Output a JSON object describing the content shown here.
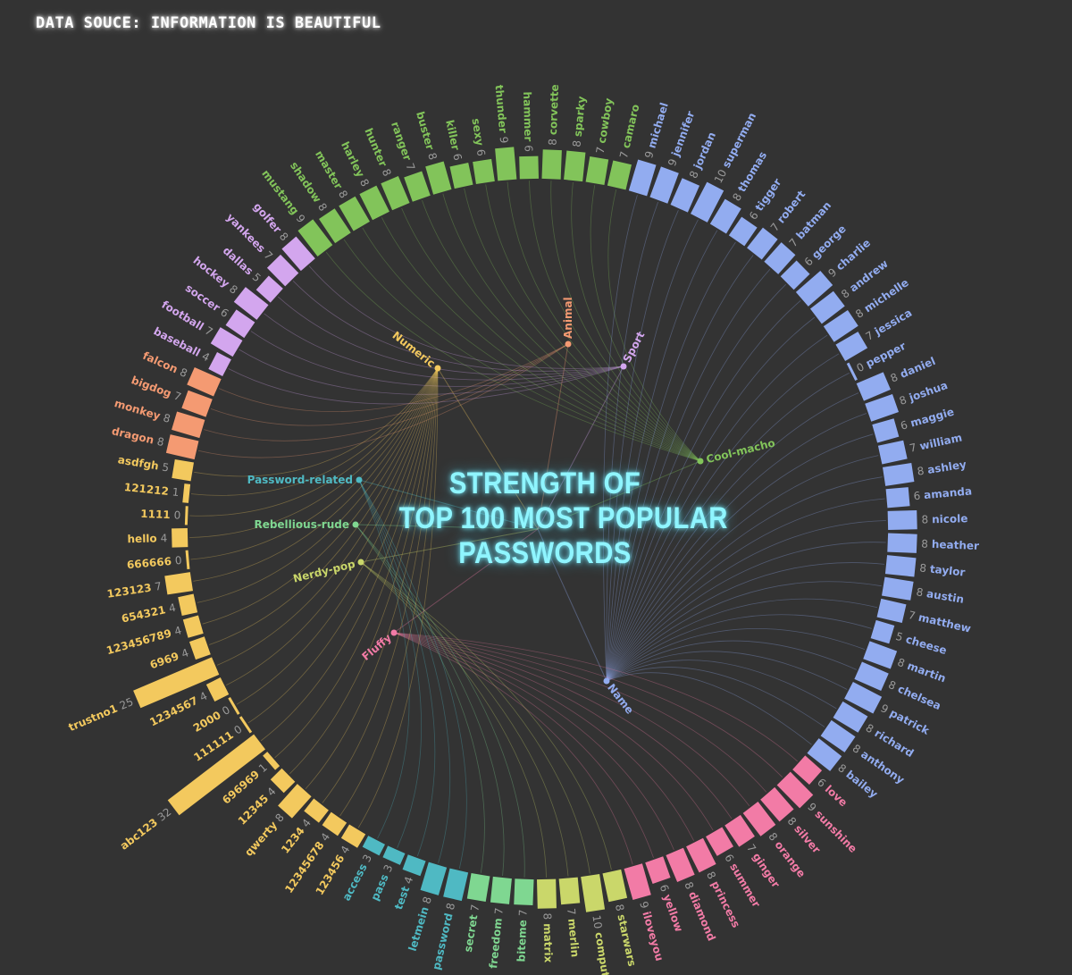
{
  "source_note": "DATA SOUCE: INFORMATION IS BEAUTIFUL",
  "chart_data": {
    "type": "radial-bar",
    "title_lines": [
      "STRENGTH OF",
      "TOP 100 MOST POPULAR",
      "PASSWORDS"
    ],
    "categories": [
      {
        "name": "Numeric",
        "color": "#f3c95e"
      },
      {
        "name": "Animal",
        "color": "#f49a72"
      },
      {
        "name": "Sport",
        "color": "#d3a6ee"
      },
      {
        "name": "Cool-macho",
        "color": "#82c45a"
      },
      {
        "name": "Name",
        "color": "#92acf0"
      },
      {
        "name": "Fluffy",
        "color": "#f27ba6"
      },
      {
        "name": "Nerdy-pop",
        "color": "#cad76a"
      },
      {
        "name": "Rebellious-rude",
        "color": "#7fd791"
      },
      {
        "name": "Password-related",
        "color": "#4fb9c3"
      }
    ],
    "passwords": [
      {
        "name": "asdfgh",
        "value": 5,
        "category": "Numeric"
      },
      {
        "name": "dragon",
        "value": 8,
        "category": "Animal"
      },
      {
        "name": "monkey",
        "value": 8,
        "category": "Animal"
      },
      {
        "name": "bigdog",
        "value": 7,
        "category": "Animal"
      },
      {
        "name": "falcon",
        "value": 8,
        "category": "Animal"
      },
      {
        "name": "baseball",
        "value": 4,
        "category": "Sport"
      },
      {
        "name": "football",
        "value": 7,
        "category": "Sport"
      },
      {
        "name": "soccer",
        "value": 6,
        "category": "Sport"
      },
      {
        "name": "hockey",
        "value": 8,
        "category": "Sport"
      },
      {
        "name": "dallas",
        "value": 5,
        "category": "Sport"
      },
      {
        "name": "yankees",
        "value": 7,
        "category": "Sport"
      },
      {
        "name": "golfer",
        "value": 8,
        "category": "Sport"
      },
      {
        "name": "mustang",
        "value": 9,
        "category": "Cool-macho"
      },
      {
        "name": "shadow",
        "value": 8,
        "category": "Cool-macho"
      },
      {
        "name": "master",
        "value": 8,
        "category": "Cool-macho"
      },
      {
        "name": "harley",
        "value": 8,
        "category": "Cool-macho"
      },
      {
        "name": "hunter",
        "value": 8,
        "category": "Cool-macho"
      },
      {
        "name": "ranger",
        "value": 7,
        "category": "Cool-macho"
      },
      {
        "name": "buster",
        "value": 8,
        "category": "Cool-macho"
      },
      {
        "name": "killer",
        "value": 6,
        "category": "Cool-macho"
      },
      {
        "name": "sexy",
        "value": 6,
        "category": "Cool-macho"
      },
      {
        "name": "thunder",
        "value": 9,
        "category": "Cool-macho"
      },
      {
        "name": "hammer",
        "value": 6,
        "category": "Cool-macho"
      },
      {
        "name": "corvette",
        "value": 8,
        "category": "Cool-macho"
      },
      {
        "name": "sparky",
        "value": 8,
        "category": "Cool-macho"
      },
      {
        "name": "cowboy",
        "value": 7,
        "category": "Cool-macho"
      },
      {
        "name": "camaro",
        "value": 7,
        "category": "Cool-macho"
      },
      {
        "name": "michael",
        "value": 9,
        "category": "Name"
      },
      {
        "name": "jennifer",
        "value": 9,
        "category": "Name"
      },
      {
        "name": "jordan",
        "value": 8,
        "category": "Name"
      },
      {
        "name": "superman",
        "value": 10,
        "category": "Name"
      },
      {
        "name": "thomas",
        "value": 8,
        "category": "Name"
      },
      {
        "name": "tigger",
        "value": 6,
        "category": "Name"
      },
      {
        "name": "robert",
        "value": 7,
        "category": "Name"
      },
      {
        "name": "batman",
        "value": 7,
        "category": "Name"
      },
      {
        "name": "george",
        "value": 6,
        "category": "Name"
      },
      {
        "name": "charlie",
        "value": 9,
        "category": "Name"
      },
      {
        "name": "andrew",
        "value": 8,
        "category": "Name"
      },
      {
        "name": "michelle",
        "value": 8,
        "category": "Name"
      },
      {
        "name": "jessica",
        "value": 7,
        "category": "Name"
      },
      {
        "name": "pepper",
        "value": 0,
        "category": "Name"
      },
      {
        "name": "daniel",
        "value": 8,
        "category": "Name"
      },
      {
        "name": "joshua",
        "value": 8,
        "category": "Name"
      },
      {
        "name": "maggie",
        "value": 6,
        "category": "Name"
      },
      {
        "name": "william",
        "value": 7,
        "category": "Name"
      },
      {
        "name": "ashley",
        "value": 8,
        "category": "Name"
      },
      {
        "name": "amanda",
        "value": 6,
        "category": "Name"
      },
      {
        "name": "nicole",
        "value": 8,
        "category": "Name"
      },
      {
        "name": "heather",
        "value": 8,
        "category": "Name"
      },
      {
        "name": "taylor",
        "value": 8,
        "category": "Name"
      },
      {
        "name": "austin",
        "value": 8,
        "category": "Name"
      },
      {
        "name": "matthew",
        "value": 7,
        "category": "Name"
      },
      {
        "name": "cheese",
        "value": 5,
        "category": "Name"
      },
      {
        "name": "martin",
        "value": 8,
        "category": "Name"
      },
      {
        "name": "chelsea",
        "value": 8,
        "category": "Name"
      },
      {
        "name": "patrick",
        "value": 9,
        "category": "Name"
      },
      {
        "name": "richard",
        "value": 8,
        "category": "Name"
      },
      {
        "name": "anthony",
        "value": 8,
        "category": "Name"
      },
      {
        "name": "bailey",
        "value": 8,
        "category": "Name"
      },
      {
        "name": "love",
        "value": 6,
        "category": "Fluffy"
      },
      {
        "name": "sunshine",
        "value": 9,
        "category": "Fluffy"
      },
      {
        "name": "silver",
        "value": 8,
        "category": "Fluffy"
      },
      {
        "name": "orange",
        "value": 8,
        "category": "Fluffy"
      },
      {
        "name": "ginger",
        "value": 7,
        "category": "Fluffy"
      },
      {
        "name": "summer",
        "value": 6,
        "category": "Fluffy"
      },
      {
        "name": "princess",
        "value": 8,
        "category": "Fluffy"
      },
      {
        "name": "diamond",
        "value": 8,
        "category": "Fluffy"
      },
      {
        "name": "yellow",
        "value": 6,
        "category": "Fluffy"
      },
      {
        "name": "iloveyou",
        "value": 9,
        "category": "Fluffy"
      },
      {
        "name": "starwars",
        "value": 8,
        "category": "Nerdy-pop"
      },
      {
        "name": "computer",
        "value": 10,
        "category": "Nerdy-pop"
      },
      {
        "name": "merlin",
        "value": 7,
        "category": "Nerdy-pop"
      },
      {
        "name": "matrix",
        "value": 8,
        "category": "Nerdy-pop"
      },
      {
        "name": "biteme",
        "value": 7,
        "category": "Rebellious-rude"
      },
      {
        "name": "freedom",
        "value": 7,
        "category": "Rebellious-rude"
      },
      {
        "name": "secret",
        "value": 7,
        "category": "Rebellious-rude"
      },
      {
        "name": "password",
        "value": 8,
        "category": "Password-related"
      },
      {
        "name": "letmein",
        "value": 8,
        "category": "Password-related"
      },
      {
        "name": "test",
        "value": 4,
        "category": "Password-related"
      },
      {
        "name": "pass",
        "value": 3,
        "category": "Password-related"
      },
      {
        "name": "access",
        "value": 3,
        "category": "Password-related"
      },
      {
        "name": "123456",
        "value": 4,
        "category": "Numeric"
      },
      {
        "name": "12345678",
        "value": 4,
        "category": "Numeric"
      },
      {
        "name": "1234",
        "value": 4,
        "category": "Numeric"
      },
      {
        "name": "qwerty",
        "value": 8,
        "category": "Numeric"
      },
      {
        "name": "12345",
        "value": 4,
        "category": "Numeric"
      },
      {
        "name": "696969",
        "value": 1,
        "category": "Numeric"
      },
      {
        "name": "abc123",
        "value": 32,
        "category": "Numeric"
      },
      {
        "name": "111111",
        "value": 0,
        "category": "Numeric"
      },
      {
        "name": "2000",
        "value": 0,
        "category": "Numeric"
      },
      {
        "name": "1234567",
        "value": 4,
        "category": "Numeric"
      },
      {
        "name": "trustno1",
        "value": 25,
        "category": "Numeric"
      },
      {
        "name": "6969",
        "value": 4,
        "category": "Numeric"
      },
      {
        "name": "123456789",
        "value": 4,
        "category": "Numeric"
      },
      {
        "name": "654321",
        "value": 4,
        "category": "Numeric"
      },
      {
        "name": "123123",
        "value": 7,
        "category": "Numeric"
      },
      {
        "name": "666666",
        "value": 0,
        "category": "Numeric"
      },
      {
        "name": "hello",
        "value": 4,
        "category": "Numeric"
      },
      {
        "name": "1111",
        "value": 0,
        "category": "Numeric"
      },
      {
        "name": "121212",
        "value": 1,
        "category": "Numeric"
      }
    ]
  }
}
